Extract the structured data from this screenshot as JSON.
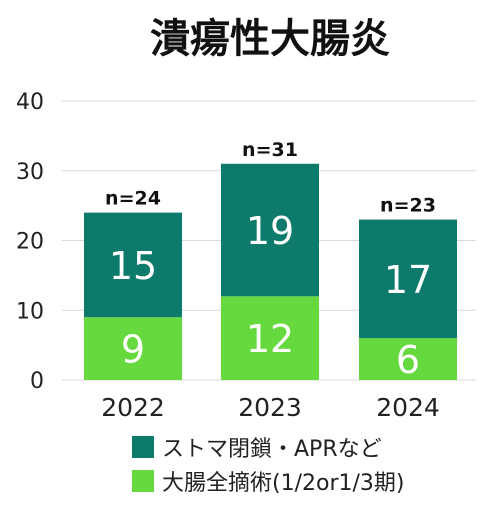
{
  "chart_data": {
    "type": "bar",
    "stacked": true,
    "title": "潰瘍性大腸炎",
    "categories": [
      "2022",
      "2023",
      "2024"
    ],
    "series": [
      {
        "name": "大腸全摘術(1/2or1/3期)",
        "values": [
          9,
          12,
          6
        ],
        "color": "#66d93f"
      },
      {
        "name": "ストマ閉鎖・APRなど",
        "values": [
          15,
          19,
          17
        ],
        "color": "#0e7a6b"
      }
    ],
    "totals": [
      "n=24",
      "n=31",
      "n=23"
    ],
    "ylim": [
      0,
      40
    ],
    "yticks": [
      0,
      10,
      20,
      30,
      40
    ],
    "grid": true,
    "legend_position": "bottom",
    "legend_order": [
      1,
      0
    ]
  }
}
